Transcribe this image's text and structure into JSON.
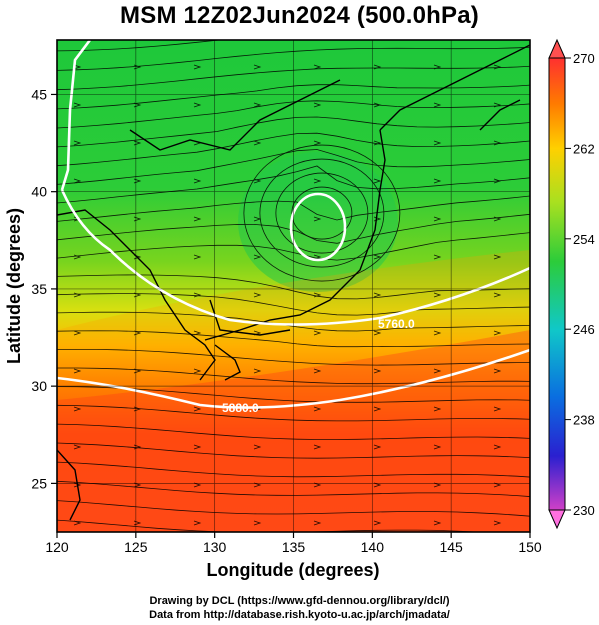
{
  "title": "MSM 12Z02Jun2024 (500.0hPa)",
  "chart_data": {
    "type": "heatmap",
    "variable_legend_colors": [
      "#e040c0",
      "#6a20c8",
      "#1a2ad8",
      "#0a78e0",
      "#10c8d0",
      "#22c85a",
      "#58d028",
      "#b8e020",
      "#ffd000",
      "#ff8000",
      "#ff2000",
      "#e03030"
    ],
    "xlabel": "Longitude (degrees)",
    "ylabel": "Latitude (degrees)",
    "xlim": [
      120,
      150
    ],
    "ylim": [
      22.5,
      47.8
    ],
    "xticks": [
      "120",
      "125",
      "130",
      "135",
      "140",
      "145",
      "150"
    ],
    "yticks": [
      "25",
      "30",
      "35",
      "40",
      "45"
    ],
    "colorbar": {
      "min": 230,
      "max": 270,
      "ticks": [
        "270",
        "262",
        "254",
        "246",
        "238",
        "230"
      ]
    },
    "contours": [
      {
        "label": "5760.0"
      },
      {
        "label": "5880.0"
      }
    ],
    "low_center": {
      "lon": 136.8,
      "lat": 38.9
    }
  },
  "footer": {
    "line1": "Drawing by DCL (https://www.gfd-dennou.org/library/dcl/)",
    "line2": "Data from http://database.rish.kyoto-u.ac.jp/arch/jmadata/"
  }
}
